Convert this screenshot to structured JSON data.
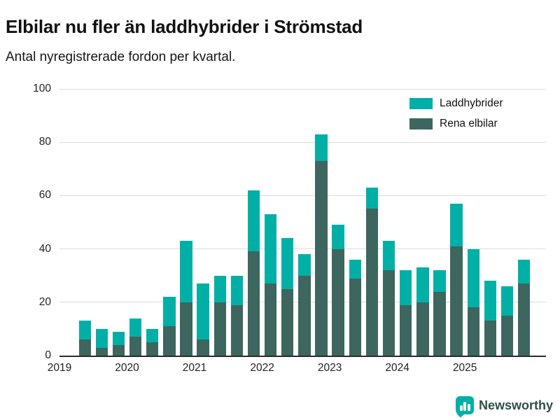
{
  "brand": {
    "name": "Newsworthy",
    "color": "#00b0a6",
    "text_color": "#2e4f49"
  },
  "chart_data": {
    "type": "bar",
    "stacked": true,
    "title": "Elbilar nu fler än laddhybrider i Strömstad",
    "subtitle": "Antal nyregistrerade fordon per kvartal.",
    "xlabel": "",
    "ylabel": "",
    "ylim": [
      0,
      100
    ],
    "yticks": [
      0,
      20,
      40,
      60,
      80,
      100
    ],
    "grid": true,
    "legend_position": "top-right",
    "x": [
      "2019 Q2",
      "2019 Q3",
      "2019 Q4",
      "2020 Q1",
      "2020 Q2",
      "2020 Q3",
      "2020 Q4",
      "2021 Q1",
      "2021 Q2",
      "2021 Q3",
      "2021 Q4",
      "2022 Q1",
      "2022 Q2",
      "2022 Q3",
      "2022 Q4",
      "2023 Q1",
      "2023 Q2",
      "2023 Q3",
      "2023 Q4",
      "2024 Q1",
      "2024 Q2",
      "2024 Q3",
      "2024 Q4",
      "2025 Q1",
      "2025 Q2",
      "2025 Q3",
      "2025 Q4"
    ],
    "x_year_labels": [
      "2019",
      "2020",
      "2021",
      "2022",
      "2023",
      "2024",
      "2025"
    ],
    "series": [
      {
        "name": "Rena elbilar",
        "color": "#3d665e",
        "values": [
          6,
          3,
          4,
          7,
          5,
          11,
          20,
          6,
          20,
          19,
          39,
          27,
          25,
          30,
          73,
          40,
          29,
          55,
          32,
          19,
          20,
          24,
          41,
          18,
          13,
          15,
          27
        ]
      },
      {
        "name": "Laddhybrider",
        "color": "#00b0a6",
        "values": [
          7,
          7,
          5,
          7,
          5,
          11,
          23,
          21,
          10,
          11,
          23,
          26,
          19,
          8,
          10,
          9,
          7,
          8,
          11,
          13,
          13,
          8,
          16,
          22,
          15,
          11,
          9
        ]
      }
    ],
    "legend": [
      {
        "label": "Laddhybrider",
        "color": "#00b0a6"
      },
      {
        "label": "Rena elbilar",
        "color": "#3d665e"
      }
    ]
  }
}
